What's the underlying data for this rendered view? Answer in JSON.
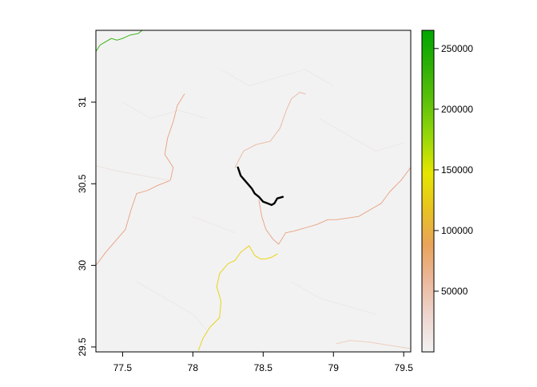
{
  "map": {
    "extent": {
      "xlim": [
        77.31,
        79.55
      ],
      "ylim": [
        29.47,
        31.44
      ]
    },
    "x_ticks": [
      {
        "value": 77.5,
        "label": "77.5"
      },
      {
        "value": 78.0,
        "label": "78"
      },
      {
        "value": 78.5,
        "label": "78.5"
      },
      {
        "value": 79.0,
        "label": "79"
      },
      {
        "value": 79.5,
        "label": "79.5"
      }
    ],
    "y_ticks": [
      {
        "value": 29.5,
        "label": "29.5"
      },
      {
        "value": 30.0,
        "label": "30"
      },
      {
        "value": 30.5,
        "label": "30.5"
      },
      {
        "value": 31.0,
        "label": "31"
      }
    ],
    "background_color": "#f2f2f2",
    "highlight_color": "#000000",
    "grid": false
  },
  "legend": {
    "placement": "right",
    "range": [
      0,
      265000
    ],
    "ticks": [
      {
        "value": 50000,
        "label": "50000"
      },
      {
        "value": 100000,
        "label": "100000"
      },
      {
        "value": 150000,
        "label": "150000"
      },
      {
        "value": 200000,
        "label": "200000"
      },
      {
        "value": 250000,
        "label": "250000"
      }
    ],
    "palette": [
      "#f2f2f2",
      "#eed6cf",
      "#ebb89c",
      "#e9a35a",
      "#e8c320",
      "#e6e600",
      "#98d80a",
      "#5ec20a",
      "#2eb006",
      "#00a600"
    ]
  },
  "features": [
    {
      "name": "highlighted-river",
      "color": "#000000",
      "points": [
        [
          78.32,
          30.6
        ],
        [
          78.34,
          30.55
        ],
        [
          78.37,
          30.52
        ],
        [
          78.4,
          30.49
        ],
        [
          78.42,
          30.47
        ],
        [
          78.44,
          30.44
        ],
        [
          78.47,
          30.42
        ],
        [
          78.5,
          30.39
        ],
        [
          78.53,
          30.38
        ],
        [
          78.56,
          30.37
        ],
        [
          78.58,
          30.38
        ],
        [
          78.6,
          30.41
        ],
        [
          78.64,
          30.42
        ]
      ]
    },
    {
      "name": "yellow-river",
      "color": "#e8d000",
      "points": [
        [
          78.04,
          29.48
        ],
        [
          78.07,
          29.55
        ],
        [
          78.12,
          29.62
        ],
        [
          78.19,
          29.68
        ],
        [
          78.2,
          29.78
        ],
        [
          78.17,
          29.87
        ],
        [
          78.19,
          29.95
        ],
        [
          78.25,
          30.01
        ],
        [
          78.3,
          30.03
        ],
        [
          78.34,
          30.08
        ],
        [
          78.4,
          30.12
        ],
        [
          78.44,
          30.06
        ],
        [
          78.48,
          30.04
        ],
        [
          78.52,
          30.04
        ],
        [
          78.56,
          30.05
        ],
        [
          78.6,
          30.07
        ]
      ]
    },
    {
      "name": "green-river",
      "color": "#2eb006",
      "points": [
        [
          77.31,
          31.31
        ],
        [
          77.34,
          31.35
        ],
        [
          77.38,
          31.37
        ],
        [
          77.42,
          31.39
        ],
        [
          77.46,
          31.38
        ],
        [
          77.5,
          31.39
        ],
        [
          77.55,
          31.41
        ],
        [
          77.61,
          31.42
        ],
        [
          77.64,
          31.44
        ]
      ]
    },
    {
      "name": "west-river",
      "color": "#e9a080",
      "points": [
        [
          77.31,
          30.0
        ],
        [
          77.38,
          30.08
        ],
        [
          77.45,
          30.15
        ],
        [
          77.52,
          30.22
        ],
        [
          77.56,
          30.34
        ],
        [
          77.6,
          30.44
        ],
        [
          77.68,
          30.46
        ],
        [
          77.75,
          30.49
        ],
        [
          77.84,
          30.52
        ],
        [
          77.86,
          30.6
        ],
        [
          77.8,
          30.68
        ],
        [
          77.82,
          30.78
        ],
        [
          77.86,
          30.88
        ],
        [
          77.89,
          30.98
        ],
        [
          77.94,
          31.05
        ]
      ]
    },
    {
      "name": "north-river",
      "color": "#eab6a0",
      "points": [
        [
          78.3,
          30.6
        ],
        [
          78.36,
          30.7
        ],
        [
          78.45,
          30.74
        ],
        [
          78.55,
          30.76
        ],
        [
          78.62,
          30.84
        ],
        [
          78.66,
          30.94
        ],
        [
          78.7,
          31.02
        ],
        [
          78.76,
          31.06
        ],
        [
          78.8,
          31.05
        ]
      ]
    },
    {
      "name": "south-river",
      "color": "#e9a080",
      "points": [
        [
          78.47,
          30.4
        ],
        [
          78.49,
          30.3
        ],
        [
          78.52,
          30.22
        ],
        [
          78.57,
          30.16
        ],
        [
          78.61,
          30.13
        ],
        [
          78.66,
          30.2
        ],
        [
          78.72,
          30.21
        ],
        [
          78.8,
          30.23
        ],
        [
          78.88,
          30.25
        ],
        [
          78.96,
          30.28
        ],
        [
          79.02,
          30.28
        ],
        [
          79.1,
          30.29
        ],
        [
          79.18,
          30.3
        ],
        [
          79.26,
          30.34
        ],
        [
          79.34,
          30.38
        ],
        [
          79.4,
          30.45
        ],
        [
          79.48,
          30.52
        ],
        [
          79.55,
          30.6
        ]
      ]
    },
    {
      "name": "east-branch",
      "color": "#eecab8",
      "points": [
        [
          79.02,
          29.52
        ],
        [
          79.12,
          29.54
        ],
        [
          79.25,
          29.53
        ],
        [
          79.4,
          29.51
        ],
        [
          79.55,
          29.49
        ]
      ]
    },
    {
      "name": "southwest-branch",
      "color": "#ece0da",
      "points": [
        [
          77.84,
          30.52
        ],
        [
          77.7,
          30.54
        ],
        [
          77.58,
          30.56
        ],
        [
          77.45,
          30.58
        ],
        [
          77.31,
          30.61
        ]
      ]
    }
  ]
}
